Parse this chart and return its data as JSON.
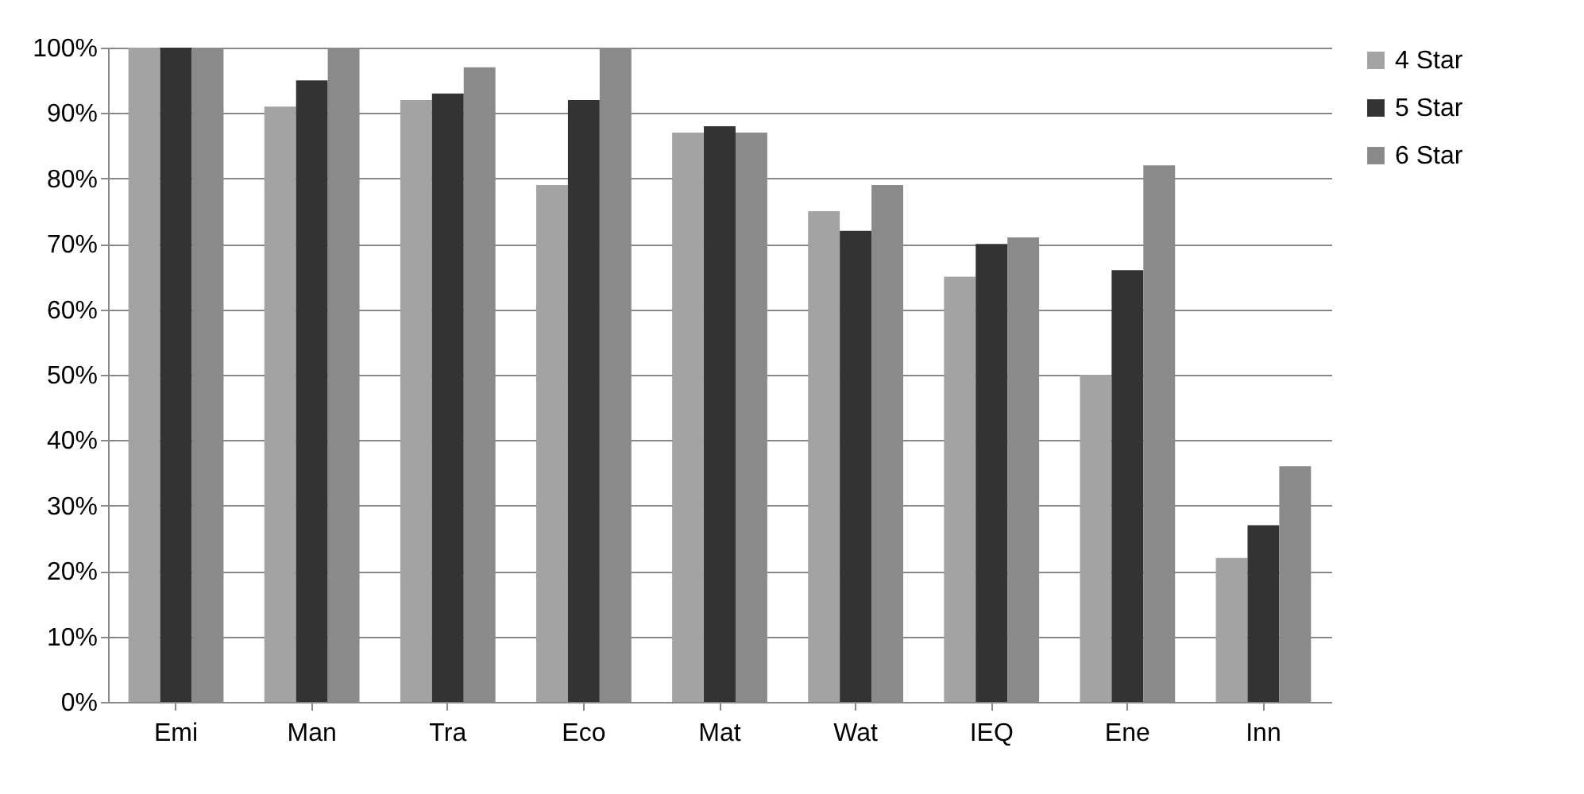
{
  "chart_data": {
    "type": "bar",
    "categories": [
      "Emi",
      "Man",
      "Tra",
      "Eco",
      "Mat",
      "Wat",
      "IEQ",
      "Ene",
      "Inn"
    ],
    "series": [
      {
        "name": "4 Star",
        "color": "#a3a3a3",
        "values": [
          100,
          91,
          92,
          79,
          87,
          75,
          65,
          50,
          22
        ]
      },
      {
        "name": "5 Star",
        "color": "#333333",
        "values": [
          100,
          95,
          93,
          92,
          88,
          72,
          70,
          66,
          27
        ]
      },
      {
        "name": "6 Star",
        "color": "#8a8a8a",
        "values": [
          100,
          100,
          97,
          100,
          87,
          79,
          71,
          82,
          36
        ]
      }
    ],
    "ylim": [
      0,
      100
    ],
    "yticks": [
      {
        "value": 0,
        "label": "0%"
      },
      {
        "value": 10,
        "label": "10%"
      },
      {
        "value": 20,
        "label": "20%"
      },
      {
        "value": 30,
        "label": "30%"
      },
      {
        "value": 40,
        "label": "40%"
      },
      {
        "value": 50,
        "label": "50%"
      },
      {
        "value": 60,
        "label": "60%"
      },
      {
        "value": 70,
        "label": "70%"
      },
      {
        "value": 80,
        "label": "80%"
      },
      {
        "value": 90,
        "label": "90%"
      },
      {
        "value": 100,
        "label": "100%"
      }
    ],
    "grid": "y",
    "legend": "right"
  }
}
